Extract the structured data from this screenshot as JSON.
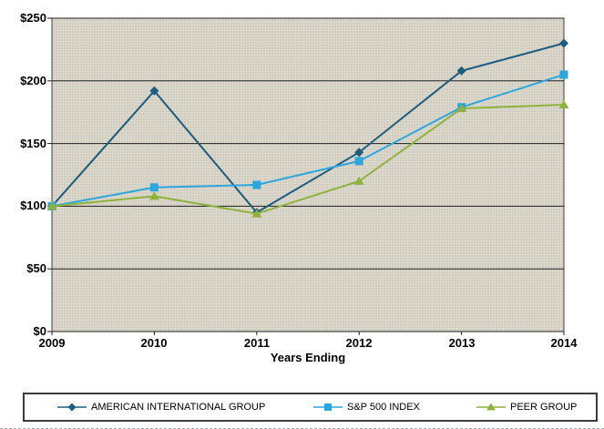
{
  "chart_data": {
    "type": "line",
    "title": "",
    "xlabel": "Years Ending",
    "ylabel": "",
    "x_labels": [
      "2009",
      "2010",
      "2011",
      "2012",
      "2013",
      "2014"
    ],
    "y_ticks": [
      "$250",
      "$200",
      "$150",
      "$100",
      "$50",
      "$0"
    ],
    "y_tick_values": [
      250,
      200,
      150,
      100,
      50,
      0
    ],
    "ylim": [
      0,
      250
    ],
    "grid": "horizontal-black",
    "legend_position": "bottom-box",
    "plot_bg": "#d6d2c5",
    "gridline_color": "#1f1f1f",
    "series": [
      {
        "name": "AMERICAN INTERNATIONAL GROUP",
        "color": "#1d5d7e",
        "marker": "diamond",
        "values": [
          100,
          192,
          95,
          143,
          208,
          230
        ]
      },
      {
        "name": "S&P 500 INDEX",
        "color": "#2ba6df",
        "marker": "square",
        "values": [
          100,
          115,
          117,
          136,
          179,
          205
        ]
      },
      {
        "name": "PEER GROUP",
        "color": "#8db33e",
        "marker": "triangle",
        "values": [
          100,
          108,
          94,
          120,
          178,
          181
        ]
      }
    ]
  }
}
